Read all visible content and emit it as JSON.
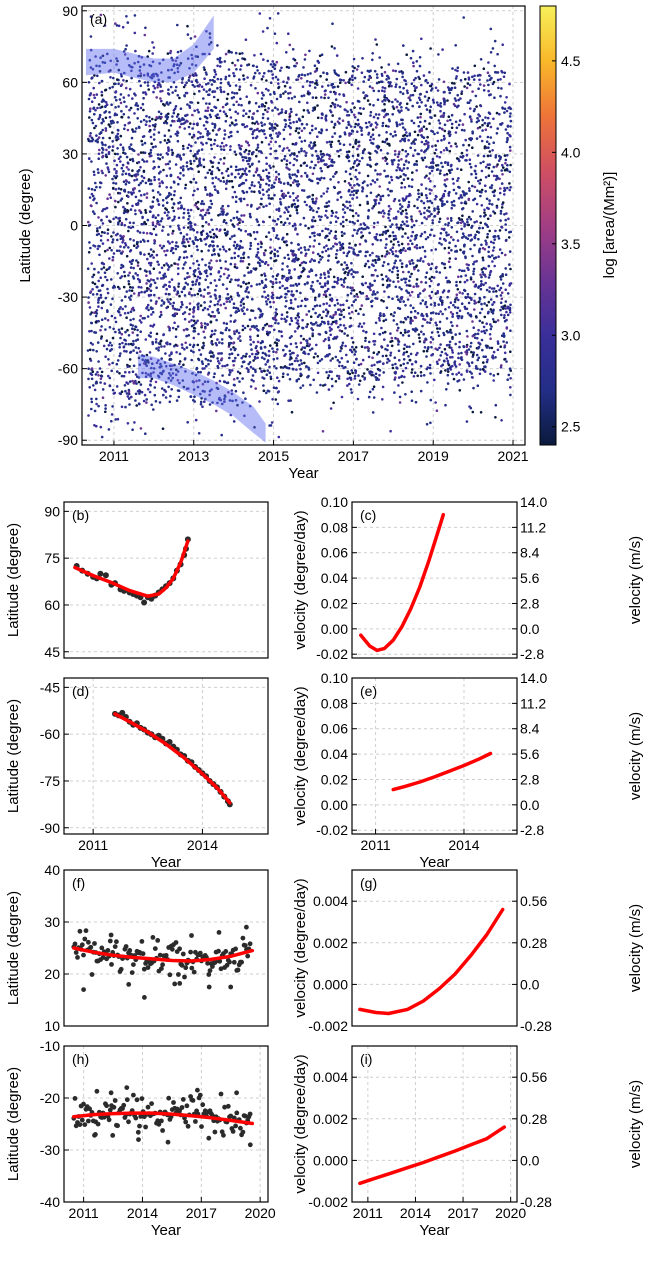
{
  "chart_data": [
    {
      "id": "a",
      "panel_label": "(a)",
      "type": "scatter",
      "xlabel": "Year",
      "ylabel": "Latitude (degree)",
      "xlim": [
        2010.2,
        2021.3
      ],
      "ylim": [
        -92,
        92
      ],
      "xticks": [
        "2011",
        "2013",
        "2015",
        "2017",
        "2019",
        "2021"
      ],
      "yticks": [
        "-90",
        "-60",
        "-30",
        "0",
        "30",
        "60",
        "90"
      ],
      "grid": true,
      "point_color_range_log_area": [
        2.4,
        4.8
      ],
      "highlight_color": "#5a6bf0",
      "north_band": [
        [
          2010.3,
          63,
          74
        ],
        [
          2011.0,
          64,
          74
        ],
        [
          2011.5,
          62,
          72
        ],
        [
          2012.0,
          60,
          70
        ],
        [
          2012.5,
          60,
          70
        ],
        [
          2013.0,
          64,
          76
        ],
        [
          2013.5,
          74,
          88
        ]
      ],
      "south_band": [
        [
          2011.6,
          -54,
          -64
        ],
        [
          2012.0,
          -55,
          -64
        ],
        [
          2012.5,
          -58,
          -67
        ],
        [
          2013.0,
          -61,
          -71
        ],
        [
          2013.5,
          -65,
          -75
        ],
        [
          2014.0,
          -70,
          -80
        ],
        [
          2014.5,
          -76,
          -87
        ],
        [
          2014.8,
          -83,
          -91
        ]
      ]
    },
    {
      "id": "colorbar",
      "type": "colorbar",
      "label": "log [area/(Mm²)]",
      "range": [
        2.4,
        4.8
      ],
      "ticks": [
        "2.5",
        "3.0",
        "3.5",
        "4.0",
        "4.5"
      ],
      "stops": [
        "#0a1a3c",
        "#232e87",
        "#3a2f9a",
        "#6a3494",
        "#a23e84",
        "#d04f62",
        "#ee7438",
        "#f9b82a",
        "#f6f05a"
      ]
    },
    {
      "id": "b",
      "panel_label": "(b)",
      "type": "scatter",
      "xlabel": "",
      "ylabel": "Latitude (degree)",
      "xlim": [
        2010.2,
        2015.8
      ],
      "ylim": [
        43,
        93
      ],
      "grid": true,
      "xticks": [],
      "yticks": [
        "45",
        "60",
        "75",
        "90"
      ],
      "points": [
        [
          2010.55,
          72.5
        ],
        [
          2010.7,
          71
        ],
        [
          2010.85,
          70
        ],
        [
          2011.0,
          69
        ],
        [
          2011.1,
          68.5
        ],
        [
          2011.2,
          70
        ],
        [
          2011.35,
          69.5
        ],
        [
          2011.5,
          66.5
        ],
        [
          2011.6,
          67
        ],
        [
          2011.75,
          65
        ],
        [
          2011.85,
          64.5
        ],
        [
          2012.0,
          64
        ],
        [
          2012.1,
          63.5
        ],
        [
          2012.2,
          63
        ],
        [
          2012.3,
          62.5
        ],
        [
          2012.4,
          60.8
        ],
        [
          2012.5,
          62.5
        ],
        [
          2012.6,
          62
        ],
        [
          2012.7,
          63
        ],
        [
          2012.8,
          64
        ],
        [
          2012.9,
          65
        ],
        [
          2013.0,
          66
        ],
        [
          2013.1,
          67
        ],
        [
          2013.2,
          68.5
        ],
        [
          2013.3,
          71
        ],
        [
          2013.4,
          73
        ],
        [
          2013.5,
          76
        ],
        [
          2013.55,
          78
        ],
        [
          2013.6,
          81
        ]
      ],
      "fit": [
        [
          2010.5,
          72
        ],
        [
          2011.0,
          69.4
        ],
        [
          2011.5,
          67.2
        ],
        [
          2012.0,
          64.6
        ],
        [
          2012.5,
          62.8
        ],
        [
          2012.8,
          63.5
        ],
        [
          2013.0,
          65.5
        ],
        [
          2013.2,
          68.5
        ],
        [
          2013.4,
          73.5
        ],
        [
          2013.6,
          80.5
        ]
      ]
    },
    {
      "id": "c",
      "panel_label": "(c)",
      "type": "line",
      "xlabel": "",
      "ylabel": "velocity (degree/day)",
      "y2label": "velocity (m/s)",
      "xlim": [
        2010.2,
        2015.8
      ],
      "ylim": [
        -0.023,
        0.1
      ],
      "grid": true,
      "xticks": [],
      "yticks": [
        "-0.02",
        "0.00",
        "0.02",
        "0.04",
        "0.06",
        "0.08",
        "0.10"
      ],
      "y2ticks": [
        "-2.8",
        "0.0",
        "2.8",
        "5.6",
        "8.4",
        "11.2",
        "14.0"
      ],
      "fit": [
        [
          2010.5,
          -0.005
        ],
        [
          2010.8,
          -0.0135
        ],
        [
          2011.05,
          -0.017
        ],
        [
          2011.3,
          -0.0155
        ],
        [
          2011.6,
          -0.009
        ],
        [
          2011.9,
          0.002
        ],
        [
          2012.2,
          0.016
        ],
        [
          2012.5,
          0.033
        ],
        [
          2012.8,
          0.053
        ],
        [
          2013.1,
          0.075
        ],
        [
          2013.3,
          0.09
        ]
      ]
    },
    {
      "id": "d",
      "panel_label": "(d)",
      "type": "scatter",
      "xlabel": "Year",
      "ylabel": "Latitude (degree)",
      "xlim": [
        2010.2,
        2015.8
      ],
      "ylim": [
        -92,
        -42
      ],
      "grid": true,
      "xticks": [
        "2011",
        "2014"
      ],
      "yticks": [
        "-45",
        "-60",
        "-75",
        "-90"
      ],
      "points": [
        [
          2011.6,
          -53.5
        ],
        [
          2011.7,
          -54
        ],
        [
          2011.8,
          -53.2
        ],
        [
          2011.9,
          -54.5
        ],
        [
          2012.0,
          -56
        ],
        [
          2012.1,
          -57
        ],
        [
          2012.2,
          -56.5
        ],
        [
          2012.3,
          -58
        ],
        [
          2012.4,
          -58.5
        ],
        [
          2012.5,
          -59.5
        ],
        [
          2012.6,
          -60
        ],
        [
          2012.7,
          -61
        ],
        [
          2012.8,
          -60.5
        ],
        [
          2012.9,
          -61.5
        ],
        [
          2013.0,
          -63
        ],
        [
          2013.1,
          -62.5
        ],
        [
          2013.2,
          -64
        ],
        [
          2013.3,
          -65
        ],
        [
          2013.4,
          -66.5
        ],
        [
          2013.5,
          -67
        ],
        [
          2013.6,
          -68.5
        ],
        [
          2013.7,
          -69
        ],
        [
          2013.8,
          -70.5
        ],
        [
          2013.9,
          -71.5
        ],
        [
          2014.0,
          -72.5
        ],
        [
          2014.1,
          -73.5
        ],
        [
          2014.2,
          -75
        ],
        [
          2014.3,
          -76
        ],
        [
          2014.4,
          -77
        ],
        [
          2014.5,
          -78.5
        ],
        [
          2014.6,
          -80
        ],
        [
          2014.7,
          -81.5
        ],
        [
          2014.75,
          -82.5
        ]
      ],
      "fit": [
        [
          2011.6,
          -53.5
        ],
        [
          2012.0,
          -56
        ],
        [
          2012.5,
          -59.3
        ],
        [
          2013.0,
          -63.2
        ],
        [
          2013.5,
          -67.6
        ],
        [
          2014.0,
          -72.7
        ],
        [
          2014.4,
          -77.2
        ],
        [
          2014.75,
          -82
        ]
      ]
    },
    {
      "id": "e",
      "panel_label": "(e)",
      "type": "line",
      "xlabel": "Year",
      "ylabel": "velocity (degree/day)",
      "y2label": "velocity (m/s)",
      "xlim": [
        2010.2,
        2015.8
      ],
      "ylim": [
        -0.023,
        0.1
      ],
      "grid": true,
      "xticks": [
        "2011",
        "2014"
      ],
      "yticks": [
        "-0.02",
        "0.00",
        "0.02",
        "0.04",
        "0.06",
        "0.08",
        "0.10"
      ],
      "y2ticks": [
        "-2.8",
        "0.0",
        "2.8",
        "5.6",
        "8.4",
        "11.2",
        "14.0"
      ],
      "fit": [
        [
          2011.6,
          0.012
        ],
        [
          2012.0,
          0.0145
        ],
        [
          2012.5,
          0.018
        ],
        [
          2013.0,
          0.022
        ],
        [
          2013.5,
          0.0265
        ],
        [
          2014.0,
          0.031
        ],
        [
          2014.5,
          0.036
        ],
        [
          2014.9,
          0.0405
        ]
      ]
    },
    {
      "id": "f",
      "panel_label": "(f)",
      "type": "scatter",
      "xlabel": "",
      "ylabel": "Latitude (degree)",
      "xlim": [
        2010.0,
        2020.4
      ],
      "ylim": [
        10,
        40
      ],
      "grid": true,
      "xticks": [],
      "yticks": [
        "10",
        "20",
        "30",
        "40"
      ],
      "trend": [
        [
          2010.5,
          25
        ],
        [
          2011.5,
          24
        ],
        [
          2012.5,
          23.5
        ],
        [
          2013.5,
          23.2
        ],
        [
          2014.5,
          23
        ],
        [
          2015.5,
          22.8
        ],
        [
          2016.5,
          22.6
        ],
        [
          2017.5,
          22.8
        ],
        [
          2018.5,
          23.4
        ],
        [
          2019.5,
          24.8
        ]
      ],
      "spread": 2.2,
      "outliers": [
        [
          2011.0,
          17
        ],
        [
          2014.1,
          15.5
        ],
        [
          2018.5,
          17.5
        ],
        [
          2017.4,
          17.5
        ],
        [
          2013.3,
          18
        ],
        [
          2015.9,
          18.2
        ],
        [
          2012.4,
          27.5
        ],
        [
          2016.5,
          27.4
        ],
        [
          2019.3,
          29
        ],
        [
          2017.9,
          28
        ]
      ],
      "fit": [
        [
          2010.5,
          25
        ],
        [
          2011.5,
          24.2
        ],
        [
          2012.5,
          23.6
        ],
        [
          2013.5,
          23.2
        ],
        [
          2014.5,
          22.9
        ],
        [
          2015.5,
          22.6
        ],
        [
          2016.5,
          22.5
        ],
        [
          2017.5,
          22.8
        ],
        [
          2018.5,
          23.4
        ],
        [
          2019.6,
          24.5
        ]
      ]
    },
    {
      "id": "g",
      "panel_label": "(g)",
      "type": "line",
      "xlabel": "",
      "ylabel": "velocity (degree/day)",
      "y2label": "velocity (m/s)",
      "xlim": [
        2010.0,
        2020.4
      ],
      "ylim": [
        -0.002,
        0.0055
      ],
      "grid": true,
      "xticks": [],
      "yticks": [
        "-0.002",
        "0.000",
        "0.002",
        "0.004"
      ],
      "y2ticks": [
        "-0.28",
        "0.0",
        "0.28",
        "0.56"
      ],
      "fit": [
        [
          2010.5,
          -0.0012
        ],
        [
          2011.5,
          -0.00135
        ],
        [
          2012.3,
          -0.0014
        ],
        [
          2013.5,
          -0.0012
        ],
        [
          2014.5,
          -0.0008
        ],
        [
          2015.5,
          -0.0002
        ],
        [
          2016.5,
          0.0005
        ],
        [
          2017.5,
          0.0014
        ],
        [
          2018.5,
          0.0024
        ],
        [
          2019.5,
          0.0036
        ]
      ]
    },
    {
      "id": "h",
      "panel_label": "(h)",
      "type": "scatter",
      "xlabel": "Year",
      "ylabel": "Latitude (degree)",
      "xlim": [
        2010.0,
        2020.4
      ],
      "ylim": [
        -40,
        -10
      ],
      "grid": true,
      "xticks": [
        "2011",
        "2014",
        "2017",
        "2020"
      ],
      "yticks": [
        "-10",
        "-20",
        "-30",
        "-40"
      ],
      "trend": [
        [
          2010.5,
          -23.5
        ],
        [
          2011.5,
          -23.2
        ],
        [
          2012.5,
          -23
        ],
        [
          2013.5,
          -22.8
        ],
        [
          2014.5,
          -22.8
        ],
        [
          2015.5,
          -23
        ],
        [
          2016.5,
          -23.2
        ],
        [
          2017.5,
          -23.6
        ],
        [
          2018.5,
          -24.1
        ],
        [
          2019.5,
          -24.8
        ]
      ],
      "spread": 2.4,
      "outliers": [
        [
          2013.2,
          -18
        ],
        [
          2016.8,
          -18.5
        ],
        [
          2012.4,
          -19
        ],
        [
          2018.8,
          -19
        ],
        [
          2015.3,
          -28.5
        ],
        [
          2013.8,
          -28
        ],
        [
          2019.5,
          -29
        ],
        [
          2011.6,
          -27
        ]
      ],
      "fit": [
        [
          2010.5,
          -23.6
        ],
        [
          2011.5,
          -23.2
        ],
        [
          2012.5,
          -23.0
        ],
        [
          2013.5,
          -22.9
        ],
        [
          2014.5,
          -22.9
        ],
        [
          2015.5,
          -23.1
        ],
        [
          2016.5,
          -23.4
        ],
        [
          2017.5,
          -23.8
        ],
        [
          2018.5,
          -24.3
        ],
        [
          2019.6,
          -24.9
        ]
      ]
    },
    {
      "id": "i",
      "panel_label": "(i)",
      "type": "line",
      "xlabel": "Year",
      "ylabel": "velocity (degree/day)",
      "y2label": "velocity (m/s)",
      "xlim": [
        2010.0,
        2020.4
      ],
      "ylim": [
        -0.002,
        0.0055
      ],
      "grid": true,
      "xticks": [
        "2011",
        "2014",
        "2017",
        "2020"
      ],
      "yticks": [
        "-0.002",
        "0.000",
        "0.002",
        "0.004"
      ],
      "y2ticks": [
        "-0.28",
        "0.0",
        "0.28",
        "0.56"
      ],
      "fit": [
        [
          2010.5,
          -0.0011
        ],
        [
          2011.5,
          -0.00085
        ],
        [
          2012.5,
          -0.0006
        ],
        [
          2013.5,
          -0.00035
        ],
        [
          2014.5,
          -0.0001
        ],
        [
          2015.5,
          0.00018
        ],
        [
          2016.5,
          0.00045
        ],
        [
          2017.5,
          0.00075
        ],
        [
          2018.5,
          0.00105
        ],
        [
          2019.6,
          0.0016
        ]
      ]
    }
  ],
  "colors": {
    "scatter_dot": "#2b2b2b",
    "fit_line": "#ff0000",
    "grid": "#cfcfcf"
  }
}
